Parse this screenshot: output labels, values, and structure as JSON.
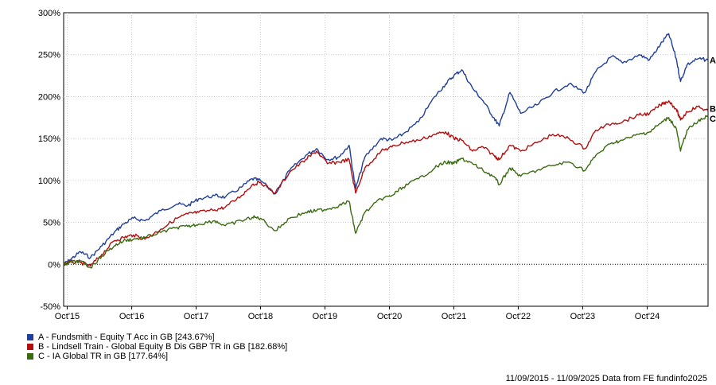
{
  "chart_data": {
    "type": "line",
    "y_unit": "%",
    "ylim": [
      -50,
      300
    ],
    "y_ticks": [
      {
        "value": 300,
        "label": "300%"
      },
      {
        "value": 250,
        "label": "250%"
      },
      {
        "value": 200,
        "label": "200%"
      },
      {
        "value": 150,
        "label": "150%"
      },
      {
        "value": 100,
        "label": "100%"
      },
      {
        "value": 50,
        "label": "50%"
      },
      {
        "value": 0,
        "label": "0%"
      },
      {
        "value": -50,
        "label": "-50%"
      }
    ],
    "x_range": [
      "2015-09-11",
      "2025-09-11"
    ],
    "x_ticks": [
      {
        "date": "2015-10-01",
        "label": "Oct'15"
      },
      {
        "date": "2016-10-01",
        "label": "Oct'16"
      },
      {
        "date": "2017-10-01",
        "label": "Oct'17"
      },
      {
        "date": "2018-10-01",
        "label": "Oct'18"
      },
      {
        "date": "2019-10-01",
        "label": "Oct'19"
      },
      {
        "date": "2020-10-01",
        "label": "Oct'20"
      },
      {
        "date": "2021-10-01",
        "label": "Oct'21"
      },
      {
        "date": "2022-10-01",
        "label": "Oct'22"
      },
      {
        "date": "2023-10-01",
        "label": "Oct'23"
      },
      {
        "date": "2024-10-01",
        "label": "Oct'24"
      }
    ],
    "grid": true,
    "zero_line": "dotted",
    "legend_position": "bottom-left",
    "series": [
      {
        "key": "A",
        "name": "A - Fundsmith - Equity T Acc in GB [243.67%]",
        "color": "#1f3f9a",
        "end_label": "A",
        "points": [
          [
            "2015-09-11",
            0
          ],
          [
            "2015-10-15",
            5
          ],
          [
            "2015-12-15",
            15
          ],
          [
            "2016-02-10",
            8
          ],
          [
            "2016-04-15",
            22
          ],
          [
            "2016-06-24",
            38
          ],
          [
            "2016-08-15",
            48
          ],
          [
            "2016-10-10",
            55
          ],
          [
            "2016-12-15",
            52
          ],
          [
            "2017-03-15",
            64
          ],
          [
            "2017-06-15",
            72
          ],
          [
            "2017-08-15",
            70
          ],
          [
            "2017-10-15",
            78
          ],
          [
            "2018-01-15",
            82
          ],
          [
            "2018-03-15",
            80
          ],
          [
            "2018-06-15",
            92
          ],
          [
            "2018-08-15",
            102
          ],
          [
            "2018-10-01",
            100
          ],
          [
            "2018-12-24",
            84
          ],
          [
            "2019-03-15",
            112
          ],
          [
            "2019-06-15",
            130
          ],
          [
            "2019-08-15",
            138
          ],
          [
            "2019-10-15",
            125
          ],
          [
            "2019-12-20",
            128
          ],
          [
            "2020-02-15",
            142
          ],
          [
            "2020-03-23",
            90
          ],
          [
            "2020-05-15",
            128
          ],
          [
            "2020-08-15",
            150
          ],
          [
            "2020-10-15",
            148
          ],
          [
            "2020-12-15",
            155
          ],
          [
            "2021-03-15",
            170
          ],
          [
            "2021-06-15",
            200
          ],
          [
            "2021-08-15",
            215
          ],
          [
            "2021-10-01",
            225
          ],
          [
            "2021-11-15",
            232
          ],
          [
            "2022-01-15",
            210
          ],
          [
            "2022-03-15",
            195
          ],
          [
            "2022-05-15",
            175
          ],
          [
            "2022-06-15",
            165
          ],
          [
            "2022-08-15",
            205
          ],
          [
            "2022-10-15",
            180
          ],
          [
            "2023-01-15",
            190
          ],
          [
            "2023-04-15",
            205
          ],
          [
            "2023-07-15",
            215
          ],
          [
            "2023-10-15",
            205
          ],
          [
            "2023-12-15",
            230
          ],
          [
            "2024-03-15",
            248
          ],
          [
            "2024-05-15",
            240
          ],
          [
            "2024-08-15",
            250
          ],
          [
            "2024-10-15",
            244
          ],
          [
            "2024-12-15",
            262
          ],
          [
            "2025-01-31",
            275
          ],
          [
            "2025-03-15",
            245
          ],
          [
            "2025-04-08",
            218
          ],
          [
            "2025-05-15",
            238
          ],
          [
            "2025-07-15",
            245
          ],
          [
            "2025-09-11",
            243.67
          ]
        ]
      },
      {
        "key": "B",
        "name": "B - Lindsell Train - Global Equity B Dis GBP TR in GB [182.68%]",
        "color": "#b30f0f",
        "end_label": "B",
        "points": [
          [
            "2015-09-11",
            0
          ],
          [
            "2015-10-15",
            3
          ],
          [
            "2015-12-15",
            2
          ],
          [
            "2016-02-10",
            -2
          ],
          [
            "2016-04-15",
            12
          ],
          [
            "2016-06-24",
            28
          ],
          [
            "2016-08-15",
            32
          ],
          [
            "2016-10-10",
            35
          ],
          [
            "2016-12-15",
            30
          ],
          [
            "2017-03-15",
            42
          ],
          [
            "2017-06-15",
            55
          ],
          [
            "2017-08-15",
            60
          ],
          [
            "2017-10-15",
            62
          ],
          [
            "2018-01-15",
            65
          ],
          [
            "2018-03-15",
            68
          ],
          [
            "2018-06-15",
            82
          ],
          [
            "2018-08-15",
            95
          ],
          [
            "2018-10-01",
            98
          ],
          [
            "2018-12-24",
            85
          ],
          [
            "2019-03-15",
            110
          ],
          [
            "2019-06-15",
            125
          ],
          [
            "2019-08-15",
            135
          ],
          [
            "2019-10-15",
            120
          ],
          [
            "2019-12-20",
            122
          ],
          [
            "2020-02-15",
            125
          ],
          [
            "2020-03-23",
            85
          ],
          [
            "2020-05-15",
            115
          ],
          [
            "2020-08-15",
            135
          ],
          [
            "2020-10-15",
            140
          ],
          [
            "2020-12-15",
            145
          ],
          [
            "2021-03-15",
            148
          ],
          [
            "2021-06-15",
            155
          ],
          [
            "2021-08-15",
            158
          ],
          [
            "2021-10-01",
            150
          ],
          [
            "2021-11-15",
            148
          ],
          [
            "2022-01-15",
            135
          ],
          [
            "2022-03-15",
            140
          ],
          [
            "2022-05-15",
            130
          ],
          [
            "2022-06-15",
            125
          ],
          [
            "2022-08-15",
            142
          ],
          [
            "2022-10-15",
            135
          ],
          [
            "2023-01-15",
            145
          ],
          [
            "2023-04-15",
            155
          ],
          [
            "2023-07-15",
            150
          ],
          [
            "2023-10-15",
            138
          ],
          [
            "2023-12-15",
            160
          ],
          [
            "2024-03-15",
            168
          ],
          [
            "2024-05-15",
            170
          ],
          [
            "2024-08-15",
            178
          ],
          [
            "2024-10-15",
            180
          ],
          [
            "2024-12-15",
            190
          ],
          [
            "2025-01-31",
            195
          ],
          [
            "2025-03-15",
            185
          ],
          [
            "2025-04-08",
            172
          ],
          [
            "2025-05-15",
            182
          ],
          [
            "2025-07-15",
            188
          ],
          [
            "2025-09-11",
            182.68
          ]
        ]
      },
      {
        "key": "C",
        "name": "C - IA Global TR in GB [177.64%]",
        "color": "#3a6b10",
        "end_label": "C",
        "points": [
          [
            "2015-09-11",
            0
          ],
          [
            "2015-10-15",
            2
          ],
          [
            "2015-12-15",
            4
          ],
          [
            "2016-02-10",
            -4
          ],
          [
            "2016-04-15",
            10
          ],
          [
            "2016-06-24",
            22
          ],
          [
            "2016-08-15",
            28
          ],
          [
            "2016-10-10",
            30
          ],
          [
            "2016-12-15",
            32
          ],
          [
            "2017-03-15",
            38
          ],
          [
            "2017-06-15",
            44
          ],
          [
            "2017-08-15",
            45
          ],
          [
            "2017-10-15",
            48
          ],
          [
            "2018-01-15",
            52
          ],
          [
            "2018-03-15",
            46
          ],
          [
            "2018-06-15",
            52
          ],
          [
            "2018-08-15",
            56
          ],
          [
            "2018-10-01",
            55
          ],
          [
            "2018-12-24",
            40
          ],
          [
            "2019-03-15",
            55
          ],
          [
            "2019-06-15",
            62
          ],
          [
            "2019-08-15",
            64
          ],
          [
            "2019-10-15",
            66
          ],
          [
            "2019-12-20",
            70
          ],
          [
            "2020-02-15",
            75
          ],
          [
            "2020-03-23",
            37
          ],
          [
            "2020-05-15",
            62
          ],
          [
            "2020-08-15",
            78
          ],
          [
            "2020-10-15",
            82
          ],
          [
            "2020-12-15",
            92
          ],
          [
            "2021-03-15",
            102
          ],
          [
            "2021-06-15",
            115
          ],
          [
            "2021-08-15",
            122
          ],
          [
            "2021-10-01",
            120
          ],
          [
            "2021-11-15",
            126
          ],
          [
            "2022-01-15",
            120
          ],
          [
            "2022-03-15",
            112
          ],
          [
            "2022-05-15",
            105
          ],
          [
            "2022-06-15",
            95
          ],
          [
            "2022-08-15",
            115
          ],
          [
            "2022-10-15",
            105
          ],
          [
            "2023-01-15",
            112
          ],
          [
            "2023-04-15",
            118
          ],
          [
            "2023-07-15",
            122
          ],
          [
            "2023-10-15",
            112
          ],
          [
            "2023-12-15",
            130
          ],
          [
            "2024-03-15",
            145
          ],
          [
            "2024-05-15",
            148
          ],
          [
            "2024-08-15",
            155
          ],
          [
            "2024-10-15",
            158
          ],
          [
            "2024-12-15",
            168
          ],
          [
            "2025-01-31",
            175
          ],
          [
            "2025-03-15",
            162
          ],
          [
            "2025-04-08",
            135
          ],
          [
            "2025-05-15",
            160
          ],
          [
            "2025-07-15",
            170
          ],
          [
            "2025-09-11",
            177.64
          ]
        ]
      }
    ]
  },
  "footer": {
    "text": "11/09/2015 - 11/09/2025 Data from FE fundinfo2025"
  }
}
